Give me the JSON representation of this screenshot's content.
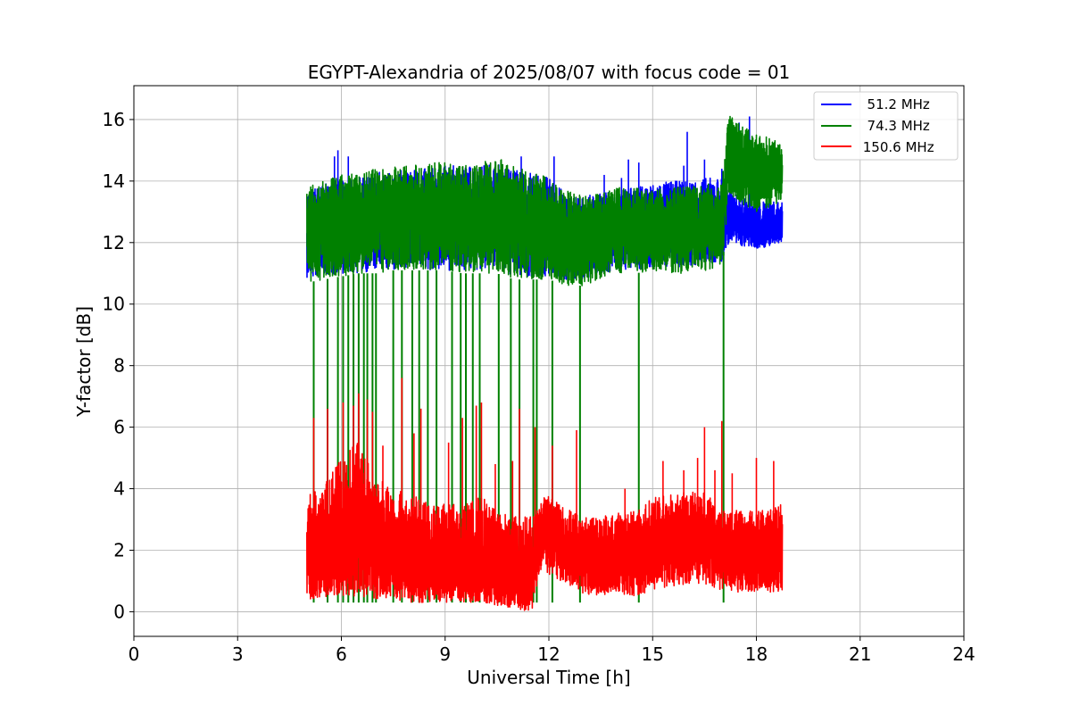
{
  "chart_data": {
    "type": "line",
    "title": "EGYPT-Alexandria of 2025/08/07 with focus code = 01",
    "xlabel": "Universal Time [h]",
    "ylabel": "Y-factor [dB]",
    "xlim": [
      0,
      24
    ],
    "ylim": [
      -0.8,
      17.1
    ],
    "xticks": [
      0,
      3,
      6,
      9,
      12,
      15,
      18,
      21,
      24
    ],
    "xtick_labels": [
      "0",
      "3",
      "6",
      "9",
      "12",
      "15",
      "18",
      "21",
      "24"
    ],
    "yticks": [
      0,
      2,
      4,
      6,
      8,
      10,
      12,
      14,
      16
    ],
    "ytick_labels": [
      "0",
      "2",
      "4",
      "6",
      "8",
      "10",
      "12",
      "14",
      "16"
    ],
    "grid": true,
    "legend_position": "top-right",
    "series": [
      {
        "name": "51.2 MHz",
        "legend_label": "  51.2 MHz",
        "color": "#0000ff",
        "x": [
          5.0,
          5.5,
          6.0,
          6.5,
          7.0,
          7.5,
          8.0,
          8.5,
          9.0,
          9.5,
          10.0,
          10.5,
          11.0,
          11.5,
          12.0,
          12.5,
          13.0,
          13.5,
          14.0,
          14.5,
          15.0,
          15.5,
          16.0,
          16.5,
          17.0,
          17.2,
          17.5,
          18.0,
          18.5,
          18.75
        ],
        "y": [
          12.3,
          12.4,
          12.5,
          12.6,
          12.7,
          12.8,
          12.9,
          12.9,
          12.9,
          12.8,
          12.8,
          12.9,
          12.7,
          12.4,
          12.2,
          12.0,
          12.0,
          12.2,
          12.5,
          12.7,
          12.8,
          12.7,
          12.6,
          12.7,
          12.8,
          12.8,
          12.5,
          12.4,
          12.4,
          12.4
        ],
        "low": [
          10.8,
          10.9,
          11.0,
          11.0,
          11.1,
          11.1,
          11.2,
          11.1,
          11.1,
          11.1,
          11.1,
          11.1,
          10.9,
          10.9,
          10.9,
          10.8,
          10.8,
          11.0,
          11.1,
          11.1,
          11.2,
          11.2,
          11.2,
          11.3,
          11.3,
          12.0,
          11.9,
          11.8,
          11.9,
          12.0
        ],
        "high": [
          13.7,
          13.9,
          14.0,
          14.1,
          14.2,
          14.3,
          14.4,
          14.4,
          14.5,
          14.5,
          14.5,
          14.6,
          14.4,
          14.3,
          14.1,
          13.6,
          13.5,
          13.6,
          13.7,
          13.8,
          13.9,
          14.0,
          14.0,
          14.1,
          14.1,
          13.7,
          13.5,
          13.3,
          13.4,
          13.3
        ],
        "spikes": [
          [
            5.8,
            14.8
          ],
          [
            5.9,
            15.0
          ],
          [
            6.2,
            14.8
          ],
          [
            7.1,
            14.3
          ],
          [
            11.2,
            14.8
          ],
          [
            12.15,
            14.8
          ],
          [
            13.6,
            14.2
          ],
          [
            14.1,
            14.1
          ],
          [
            14.3,
            14.7
          ],
          [
            14.6,
            14.6
          ],
          [
            15.9,
            14.5
          ],
          [
            16.0,
            15.6
          ],
          [
            16.5,
            14.7
          ],
          [
            17.0,
            14.4
          ],
          [
            17.5,
            15.9
          ],
          [
            17.8,
            16.1
          ]
        ]
      },
      {
        "name": "74.3 MHz",
        "legend_label": "  74.3 MHz",
        "color": "#008000",
        "x": [
          5.0,
          5.5,
          6.0,
          6.5,
          7.0,
          7.5,
          8.0,
          8.5,
          9.0,
          9.5,
          10.0,
          10.5,
          11.0,
          11.5,
          12.0,
          12.5,
          13.0,
          13.5,
          14.0,
          14.5,
          15.0,
          15.5,
          16.0,
          16.5,
          17.0,
          17.2,
          17.5,
          18.0,
          18.5,
          18.75
        ],
        "y": [
          12.3,
          12.4,
          12.6,
          12.7,
          12.8,
          12.9,
          13.0,
          13.0,
          13.0,
          12.9,
          12.9,
          13.0,
          12.8,
          12.4,
          12.2,
          12.0,
          12.0,
          12.2,
          12.4,
          12.5,
          12.5,
          12.4,
          12.4,
          12.5,
          12.5,
          14.8,
          14.6,
          14.3,
          14.4,
          14.4
        ],
        "low": [
          10.7,
          10.8,
          10.9,
          11.0,
          11.0,
          11.1,
          11.1,
          11.1,
          11.1,
          11.0,
          11.0,
          11.0,
          10.8,
          10.8,
          10.8,
          10.6,
          10.6,
          10.8,
          11.0,
          11.0,
          11.1,
          11.0,
          11.0,
          11.1,
          11.1,
          13.5,
          13.3,
          13.0,
          13.2,
          13.3
        ],
        "high": [
          13.8,
          14.0,
          14.2,
          14.3,
          14.4,
          14.5,
          14.5,
          14.6,
          14.6,
          14.5,
          14.6,
          14.8,
          14.5,
          14.3,
          14.1,
          13.7,
          13.5,
          13.6,
          13.8,
          13.8,
          13.7,
          13.8,
          13.8,
          13.9,
          13.9,
          16.2,
          15.9,
          15.5,
          15.4,
          15.1
        ],
        "dropouts": [
          5.2,
          5.6,
          5.9,
          6.05,
          6.2,
          6.35,
          6.5,
          6.65,
          6.75,
          6.9,
          7.0,
          7.5,
          7.75,
          8.05,
          8.25,
          8.5,
          8.75,
          9.2,
          9.45,
          9.6,
          9.8,
          10.0,
          10.55,
          10.9,
          11.15,
          11.55,
          11.65,
          12.1,
          12.9,
          14.6,
          17.05
        ]
      },
      {
        "name": "150.6 MHz",
        "legend_label": " 150.6 MHz",
        "color": "#ff0000",
        "x": [
          5.0,
          5.5,
          6.0,
          6.5,
          7.0,
          7.5,
          8.0,
          8.5,
          9.0,
          9.5,
          10.0,
          10.5,
          11.0,
          11.5,
          11.8,
          12.0,
          12.5,
          13.0,
          13.5,
          14.0,
          14.5,
          15.0,
          15.5,
          16.0,
          16.5,
          17.0,
          17.5,
          18.0,
          18.5,
          18.75
        ],
        "y": [
          1.6,
          1.7,
          1.9,
          2.3,
          1.9,
          1.6,
          1.6,
          1.5,
          1.4,
          1.4,
          1.5,
          1.3,
          1.1,
          1.0,
          2.6,
          2.4,
          2.0,
          1.8,
          1.7,
          1.7,
          1.8,
          2.1,
          2.2,
          2.3,
          2.3,
          2.0,
          1.9,
          1.9,
          1.9,
          1.9
        ],
        "low": [
          0.4,
          0.5,
          0.5,
          0.5,
          0.4,
          0.4,
          0.3,
          0.3,
          0.3,
          0.3,
          0.3,
          0.2,
          0.1,
          0.0,
          1.5,
          1.2,
          0.9,
          0.6,
          0.5,
          0.5,
          0.5,
          0.7,
          0.8,
          0.9,
          0.9,
          0.7,
          0.6,
          0.6,
          0.6,
          0.7
        ],
        "high": [
          3.9,
          4.1,
          5.0,
          5.6,
          4.5,
          4.0,
          3.8,
          3.6,
          3.5,
          3.5,
          3.8,
          3.3,
          3.1,
          3.1,
          3.7,
          3.8,
          3.4,
          3.1,
          3.1,
          3.2,
          3.3,
          3.7,
          3.8,
          3.9,
          3.9,
          3.4,
          3.3,
          3.3,
          3.4,
          3.5
        ],
        "spikes": [
          [
            5.2,
            6.3
          ],
          [
            5.6,
            6.6
          ],
          [
            6.05,
            6.8
          ],
          [
            6.35,
            6.7
          ],
          [
            6.5,
            7.1
          ],
          [
            6.75,
            6.9
          ],
          [
            6.9,
            6.5
          ],
          [
            7.2,
            5.4
          ],
          [
            7.75,
            7.6
          ],
          [
            8.1,
            5.8
          ],
          [
            8.3,
            6.6
          ],
          [
            9.1,
            5.5
          ],
          [
            9.5,
            6.3
          ],
          [
            9.9,
            6.7
          ],
          [
            10.05,
            6.8
          ],
          [
            10.45,
            4.8
          ],
          [
            10.95,
            4.9
          ],
          [
            11.15,
            6.6
          ],
          [
            11.6,
            6.0
          ],
          [
            12.1,
            5.4
          ],
          [
            12.8,
            5.9
          ],
          [
            14.2,
            4.0
          ],
          [
            15.3,
            4.9
          ],
          [
            15.9,
            4.6
          ],
          [
            16.3,
            5.0
          ],
          [
            16.5,
            6.0
          ],
          [
            16.8,
            4.6
          ],
          [
            17.0,
            6.2
          ],
          [
            17.3,
            4.5
          ],
          [
            18.0,
            5.0
          ],
          [
            18.5,
            4.9
          ]
        ]
      }
    ]
  }
}
